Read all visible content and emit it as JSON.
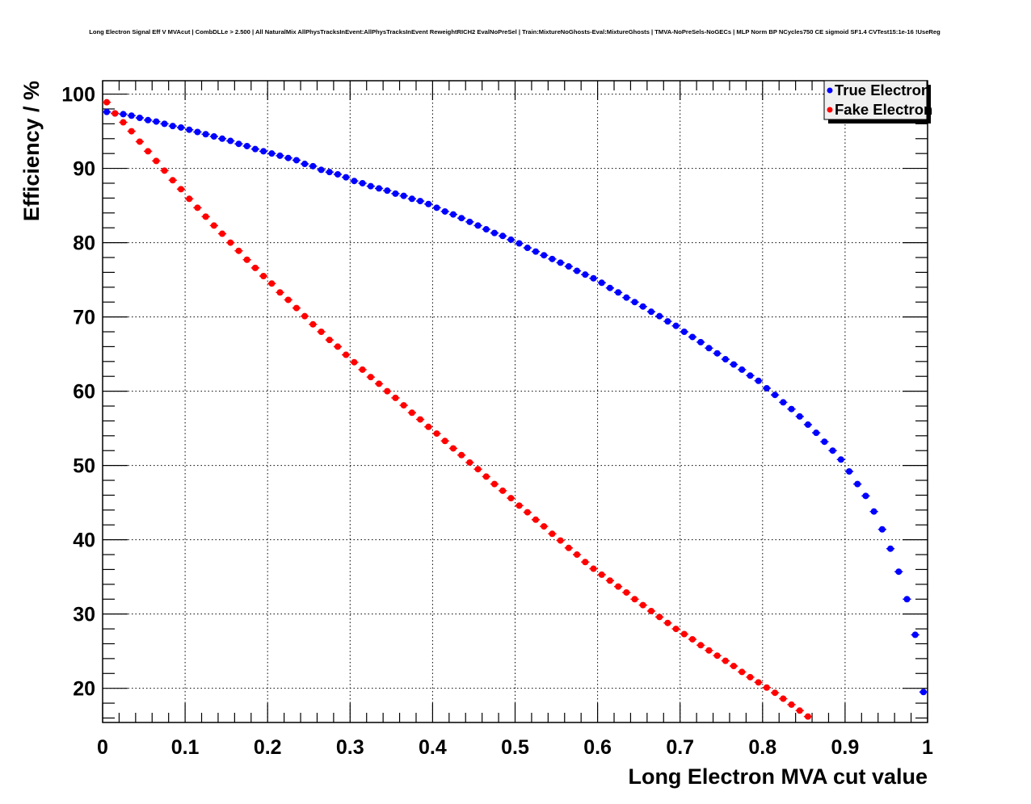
{
  "chart_data": {
    "type": "scatter",
    "title": "Long Electron Signal Eff V MVAcut | CombDLLe > 2.500 | All NaturalMix AllPhysTracksInEvent:AllPhysTracksInEvent ReweightRICH2 EvalNoPreSel | Train:MixtureNoGhosts-Eval:MixtureGhosts | TMVA-NoPreSels-NoGECs | MLP Norm BP NCycles750 CE sigmoid SF1.4 CVTest15:1e-16 !UseReg",
    "xlabel": "Long Electron MVA cut value",
    "ylabel": "Efficiency / %",
    "xlim": [
      0,
      1
    ],
    "ylim": [
      15.4,
      101.8
    ],
    "grid": true,
    "legend_position": "top-right",
    "x_ticks": [
      "0",
      "0.1",
      "0.2",
      "0.3",
      "0.4",
      "0.5",
      "0.6",
      "0.7",
      "0.8",
      "0.9",
      "1"
    ],
    "y_ticks": [
      "20",
      "30",
      "40",
      "50",
      "60",
      "70",
      "80",
      "90",
      "100"
    ],
    "x_start": 0.005,
    "x_step": 0.01,
    "series": [
      {
        "name": "True Electron",
        "color": "#0000ff",
        "values": [
          97.6,
          97.4,
          97.3,
          97.1,
          96.8,
          96.5,
          96.3,
          96.0,
          95.7,
          95.5,
          95.2,
          94.9,
          94.6,
          94.3,
          94.0,
          93.7,
          93.3,
          93.0,
          92.6,
          92.3,
          92.0,
          91.7,
          91.4,
          91.1,
          90.6,
          90.3,
          89.8,
          89.5,
          89.2,
          88.8,
          88.3,
          88.0,
          87.6,
          87.3,
          87.0,
          86.6,
          86.3,
          85.9,
          85.6,
          85.2,
          84.7,
          84.2,
          83.8,
          83.3,
          82.8,
          82.3,
          81.8,
          81.3,
          80.9,
          80.4,
          79.9,
          79.3,
          78.8,
          78.3,
          77.8,
          77.3,
          76.8,
          76.2,
          75.7,
          75.2,
          74.6,
          73.9,
          73.3,
          72.6,
          72.0,
          71.4,
          70.7,
          70.1,
          69.4,
          68.8,
          68.0,
          67.3,
          66.6,
          65.8,
          65.1,
          64.3,
          63.6,
          62.9,
          62.1,
          61.4,
          60.4,
          59.5,
          58.5,
          57.6,
          56.6,
          55.5,
          54.4,
          53.2,
          52.0,
          50.8,
          49.2,
          47.5,
          45.9,
          43.8,
          41.4,
          38.8,
          35.7,
          32.0,
          27.2,
          19.5
        ]
      },
      {
        "name": "Fake Electron",
        "color": "#ff0000",
        "values": [
          98.9,
          97.4,
          96.2,
          95.0,
          93.6,
          92.3,
          91.0,
          89.7,
          88.4,
          87.2,
          85.9,
          84.7,
          83.5,
          82.3,
          81.2,
          80.0,
          78.9,
          77.7,
          76.6,
          75.5,
          74.5,
          73.3,
          72.3,
          71.2,
          70.1,
          69.0,
          68.0,
          66.9,
          66.0,
          64.9,
          63.9,
          62.9,
          61.9,
          61.0,
          60.0,
          59.1,
          58.1,
          57.1,
          56.2,
          55.2,
          54.3,
          53.3,
          52.3,
          51.4,
          50.4,
          49.5,
          48.5,
          47.5,
          46.6,
          45.6,
          44.6,
          43.7,
          42.7,
          41.8,
          40.8,
          39.9,
          38.9,
          38.0,
          37.0,
          36.1,
          35.3,
          34.5,
          33.7,
          32.9,
          32.0,
          31.2,
          30.4,
          29.6,
          28.8,
          28.0,
          27.3,
          26.6,
          25.8,
          25.1,
          24.4,
          23.7,
          23.0,
          22.2,
          21.5,
          20.8,
          20.1,
          19.4,
          18.6,
          17.8,
          17.0,
          16.2
        ]
      }
    ]
  }
}
